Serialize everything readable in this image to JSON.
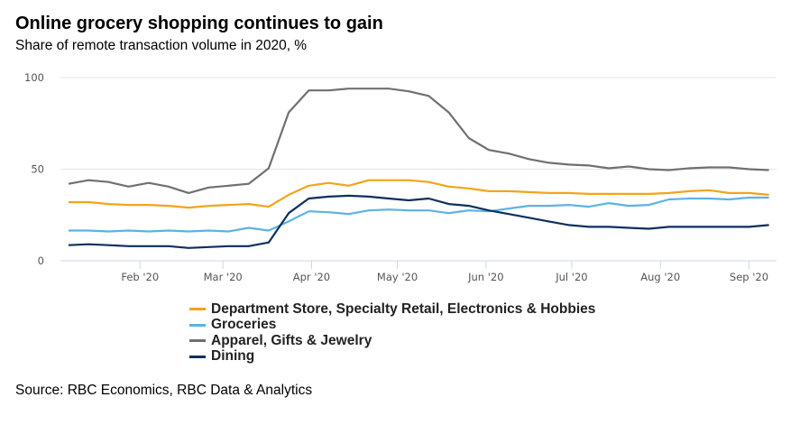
{
  "chart_data": {
    "type": "line",
    "title": "Online grocery shopping continues to gain",
    "subtitle": "Share of remote transaction volume in 2020, %",
    "xlabel": "",
    "ylabel": "",
    "ylim": [
      0,
      100
    ],
    "yticks": [
      0,
      50,
      100
    ],
    "grid": true,
    "x_start_date": "2020-01-07",
    "x_interval": "weekly",
    "x_end_date": "2020-09-08",
    "xticks": [
      {
        "label": "Feb '20",
        "date": "2020-02-01"
      },
      {
        "label": "Mar '20",
        "date": "2020-03-01"
      },
      {
        "label": "Apr '20",
        "date": "2020-04-01"
      },
      {
        "label": "May '20",
        "date": "2020-05-01"
      },
      {
        "label": "Jun '20",
        "date": "2020-06-01"
      },
      {
        "label": "Jul '20",
        "date": "2020-07-01"
      },
      {
        "label": "Aug '20",
        "date": "2020-08-01"
      },
      {
        "label": "Sep '20",
        "date": "2020-09-01"
      }
    ],
    "legend_position": "bottom",
    "series": [
      {
        "name": "Department Store, Specialty Retail, Electronics & Hobbies",
        "color": "#f5a31a",
        "values": [
          32,
          32,
          31,
          30.5,
          30.5,
          30,
          29,
          30,
          30.5,
          31,
          29.5,
          36,
          41,
          42.5,
          41,
          44,
          44,
          44,
          43,
          40.5,
          39.5,
          38,
          38,
          37.5,
          37,
          37,
          36.5,
          36.5,
          36.5,
          36.5,
          37,
          38,
          38.5,
          37,
          37,
          36
        ]
      },
      {
        "name": "Groceries",
        "color": "#5ab4e0",
        "values": [
          16.5,
          16.5,
          16,
          16.5,
          16,
          16.5,
          16,
          16.5,
          16,
          18,
          16.5,
          21.5,
          27,
          26.5,
          25.5,
          27.5,
          28,
          27.5,
          27.5,
          26,
          27.5,
          27,
          28.5,
          30,
          30,
          30.5,
          29.5,
          31.5,
          30,
          30.5,
          33.5,
          34,
          34,
          33.5,
          34.5,
          34.5
        ]
      },
      {
        "name": "Apparel, Gifts & Jewelry",
        "color": "#707070",
        "values": [
          42,
          44,
          43,
          40.5,
          42.5,
          40.5,
          37,
          40,
          41,
          42,
          50.5,
          81,
          93,
          93,
          94,
          94,
          94,
          92.5,
          90,
          81,
          67,
          60.5,
          58.5,
          55.5,
          53.5,
          52.5,
          52,
          50.5,
          51.5,
          50,
          49.5,
          50.5,
          51,
          51,
          50,
          49.5
        ]
      },
      {
        "name": "Dining",
        "color": "#0d2f5e",
        "values": [
          8.5,
          9,
          8.5,
          8,
          8,
          8,
          7,
          7.5,
          8,
          8,
          10,
          26,
          34,
          35,
          35.5,
          35,
          34,
          33,
          34,
          31,
          30,
          27.5,
          25.5,
          23.5,
          21.5,
          19.5,
          18.5,
          18.5,
          18,
          17.5,
          18.5,
          18.5,
          18.5,
          18.5,
          18.5,
          19.5
        ]
      }
    ]
  },
  "source": "Source: RBC Economics, RBC Data & Analytics"
}
